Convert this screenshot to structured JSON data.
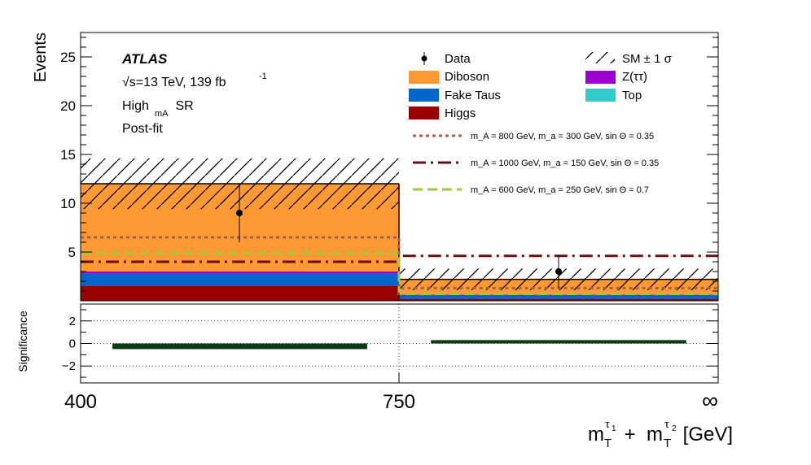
{
  "chart_data": {
    "type": "bar",
    "panel_top": {
      "ylabel": "Events",
      "ylim": [
        0,
        27.5
      ],
      "yticks": [
        5,
        10,
        15,
        20,
        25
      ],
      "bins": [
        {
          "label": "400-750",
          "stack": {
            "Higgs": 1.5,
            "Fake Taus": 1.3,
            "Z(ττ)": 0.2,
            "Top": 0.0,
            "Diboson": 9.0
          },
          "total": 12.0,
          "unc": 2.6,
          "data": 9.0,
          "data_err": 3.0
        },
        {
          "label": "750-∞",
          "stack": {
            "Higgs": 0.2,
            "Fake Taus": 0.4,
            "Z(ττ)": 0.05,
            "Top": 0.0,
            "Diboson": 1.55
          },
          "total": 2.2,
          "unc": 1.1,
          "data": 3.0,
          "data_err": 1.7
        }
      ],
      "signals": [
        {
          "label": "m_A = 800 GeV, m_a = 300 GeV, sin Θ = 0.35",
          "values": [
            6.5,
            1.3
          ],
          "color": "#a0624a",
          "style": "dotted"
        },
        {
          "label": "m_A = 1000 GeV, m_a = 150 GeV, sin Θ = 0.35",
          "values": [
            4.0,
            4.6
          ],
          "color": "#6b0f0f",
          "style": "dashdot"
        },
        {
          "label": "m_A = 600 GeV, m_a = 250 GeV, sin Θ = 0.7",
          "values": [
            4.9,
            0.7
          ],
          "color": "#99cc33",
          "style": "dashed"
        }
      ],
      "annotations": {
        "experiment": "ATLAS",
        "energy": "√s=13 TeV, 139 fb",
        "energy_sup": "-1",
        "region_main": "High",
        "region_sub": "mA",
        "region_suffix": " SR",
        "fit": "Post-fit"
      }
    },
    "panel_bottom": {
      "ylabel": "Significance",
      "ylim": [
        -3.5,
        3.5
      ],
      "yticks": [
        -2,
        0,
        2
      ],
      "grid": true,
      "values": [
        -0.5,
        0.3
      ],
      "bar_color": "#0b3a14"
    },
    "x_tick_labels": [
      "400",
      "750",
      "∞"
    ],
    "x_edges": [
      400,
      750,
      1100
    ],
    "xlabel": {
      "m": "m",
      "T": "T",
      "tau": "τ",
      "i1": "1",
      "i2": "2",
      "plus": " + ",
      "unit": " [GeV]"
    },
    "legend": [
      {
        "key": "data",
        "label": "Data",
        "color": "#000000"
      },
      {
        "key": "sm",
        "label": "SM ± 1 σ",
        "color": "#000000"
      },
      {
        "key": "diboson",
        "label": "Diboson",
        "color": "#ff9933"
      },
      {
        "key": "ztt",
        "label": "Z(ττ)",
        "color": "#9900cc"
      },
      {
        "key": "fake",
        "label": "Fake Taus",
        "color": "#0066cc"
      },
      {
        "key": "top",
        "label": "Top",
        "color": "#33cccc"
      },
      {
        "key": "higgs",
        "label": "Higgs",
        "color": "#990000"
      }
    ],
    "colors": {
      "Higgs": "#990000",
      "Fake Taus": "#0066cc",
      "Z(ττ)": "#9900cc",
      "Top": "#33cccc",
      "Diboson": "#ff9933"
    }
  }
}
